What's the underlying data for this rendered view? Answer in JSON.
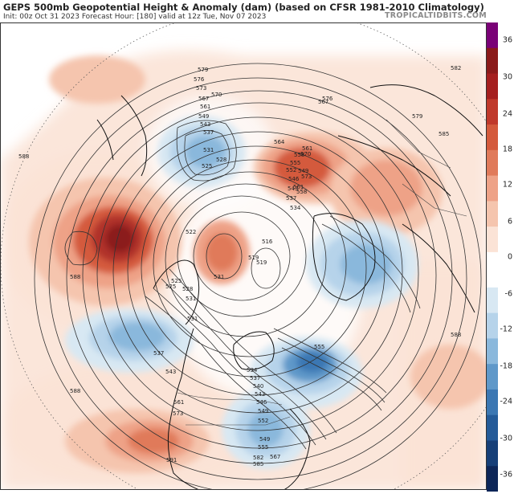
{
  "header": {
    "title": "GEPS 500mb Geopotential Height & Anomaly (dam) (based on CFSR 1981-2010 Climatology)",
    "subtitle": "Init: 00z Oct 31 2023   Forecast Hour: [180]   valid at 12z Tue, Nov 07 2023",
    "credit": "TROPICALTIDBITS.COM"
  },
  "colorbar": {
    "labels": [
      "36",
      "30",
      "24",
      "18",
      "12",
      "6",
      "0",
      "-6",
      "-12",
      "-18",
      "-24",
      "-30",
      "-36"
    ],
    "warm_colors": [
      "#7a0177",
      "#8b1a1a",
      "#a51f1f",
      "#c0392b",
      "#d45a3c",
      "#e07a5a",
      "#eea287",
      "#f5c5ae",
      "#fbe3d6"
    ],
    "cool_colors": [
      "#d8e8f3",
      "#b6d3ea",
      "#8ab8dc",
      "#5f98c9",
      "#3b77b3",
      "#245b99",
      "#163f78",
      "#0d2658"
    ]
  },
  "contour_labels": [
    "579",
    "576",
    "573",
    "570",
    "567",
    "561",
    "549",
    "543",
    "537",
    "531",
    "528",
    "525",
    "522",
    "519",
    "516",
    "531",
    "534",
    "537",
    "543",
    "546",
    "549",
    "552",
    "555",
    "558",
    "561",
    "564",
    "567",
    "570",
    "573",
    "576",
    "579",
    "582",
    "585",
    "588",
    "588",
    "588",
    "588",
    "558",
    "561",
    "555",
    "552",
    "549",
    "546",
    "543",
    "540",
    "537",
    "534",
    "531",
    "528",
    "525",
    "519",
    "525",
    "531",
    "537",
    "543",
    "549",
    "555",
    "561",
    "567",
    "573",
    "582",
    "585",
    "591"
  ],
  "map": {
    "anomaly_centers": [
      {
        "name": "north-pacific-ridge",
        "sign": "positive",
        "peak_dam": 30
      },
      {
        "name": "bering-sea-trough",
        "sign": "negative",
        "peak_dam": -12
      },
      {
        "name": "northeast-pacific-trough",
        "sign": "negative",
        "peak_dam": -12
      },
      {
        "name": "eastern-canada-trough",
        "sign": "negative",
        "peak_dam": -24
      },
      {
        "name": "central-us-trough",
        "sign": "negative",
        "peak_dam": -12
      },
      {
        "name": "scandinavia-ridge",
        "sign": "positive",
        "peak_dam": 18
      },
      {
        "name": "subtropical-pacific-ridge",
        "sign": "positive",
        "peak_dam": 18
      },
      {
        "name": "greenland-trough",
        "sign": "negative",
        "peak_dam": -18
      },
      {
        "name": "arctic-ridge",
        "sign": "positive",
        "peak_dam": 18
      }
    ]
  }
}
